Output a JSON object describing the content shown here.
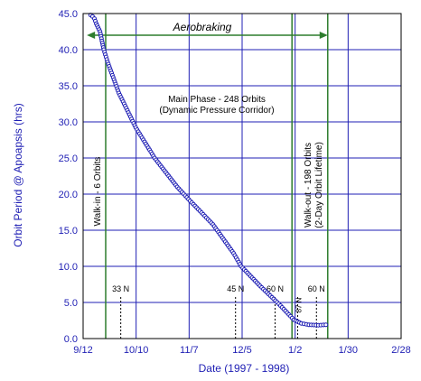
{
  "chart_data": {
    "type": "scatter",
    "xlabel": "Date (1997 - 1998)",
    "ylabel": "Orbit Period @ Apoapsis (hrs)",
    "x_ticks": [
      "9/12",
      "10/10",
      "11/7",
      "12/5",
      "1/2",
      "1/30",
      "2/28"
    ],
    "xlim": [
      "1997-09-12",
      "1998-02-28"
    ],
    "ylim": [
      0,
      45
    ],
    "y_ticks": [
      "0.0",
      "5.0",
      "10.0",
      "15.0",
      "20.0",
      "25.0",
      "30.0",
      "35.0",
      "40.0",
      "45.0"
    ],
    "grid": true,
    "series": [
      {
        "marker": "open-circle",
        "color": "#1f1fb4",
        "points": [
          [
            "1997-09-16",
            44.8
          ],
          [
            "1997-09-17",
            44.6
          ],
          [
            "1997-09-18",
            44.3
          ],
          [
            "1997-09-19",
            43.6
          ],
          [
            "1997-09-21",
            42.5
          ],
          [
            "1997-09-22",
            41.2
          ],
          [
            "1997-09-23",
            40.0
          ],
          [
            "1997-09-25",
            38.3
          ],
          [
            "1997-10-01",
            34.0
          ],
          [
            "1997-10-10",
            29.2
          ],
          [
            "1997-10-20",
            25.0
          ],
          [
            "1997-11-01",
            21.0
          ],
          [
            "1997-11-07",
            19.3
          ],
          [
            "1997-11-20",
            15.8
          ],
          [
            "1997-12-01",
            11.8
          ],
          [
            "1997-12-05",
            10.0
          ],
          [
            "1997-12-15",
            7.3
          ],
          [
            "1997-12-25",
            4.8
          ],
          [
            "1998-01-02",
            2.6
          ],
          [
            "1998-01-06",
            2.1
          ],
          [
            "1998-01-10",
            1.9
          ],
          [
            "1998-01-15",
            1.85
          ],
          [
            "1998-01-19",
            1.9
          ]
        ]
      }
    ],
    "phase_lines": [
      "1997-09-24",
      "1998-01-01",
      "1998-01-20"
    ],
    "phase_labels": {
      "walk_in": "Walk-in - 6 Orbits",
      "main": "Main Phase - 248 Orbits",
      "main_sub": "(Dynamic Pressure Corridor)",
      "walk_out": "Walk-out - 198 Orbits",
      "walk_out_sub": "(2-Day Orbit Lifetime)"
    },
    "aerobraking": {
      "label": "Aerobraking",
      "value": 42.0,
      "from": "1997-09-14",
      "to": "1998-01-20",
      "color": "#2e7d2e"
    },
    "latitude_markers": [
      {
        "label": "33 N",
        "date": "1997-10-02"
      },
      {
        "label": "45 N",
        "date": "1997-12-02"
      },
      {
        "label": "60 N",
        "date": "1997-12-23"
      },
      {
        "label": "87 N",
        "date": "1998-01-04"
      },
      {
        "label": "60 N",
        "date": "1998-01-14"
      }
    ],
    "colors": {
      "axis_text": "#1f1fb4",
      "grid": "#1f1fb4",
      "phase_line": "#2e7d2e"
    }
  }
}
